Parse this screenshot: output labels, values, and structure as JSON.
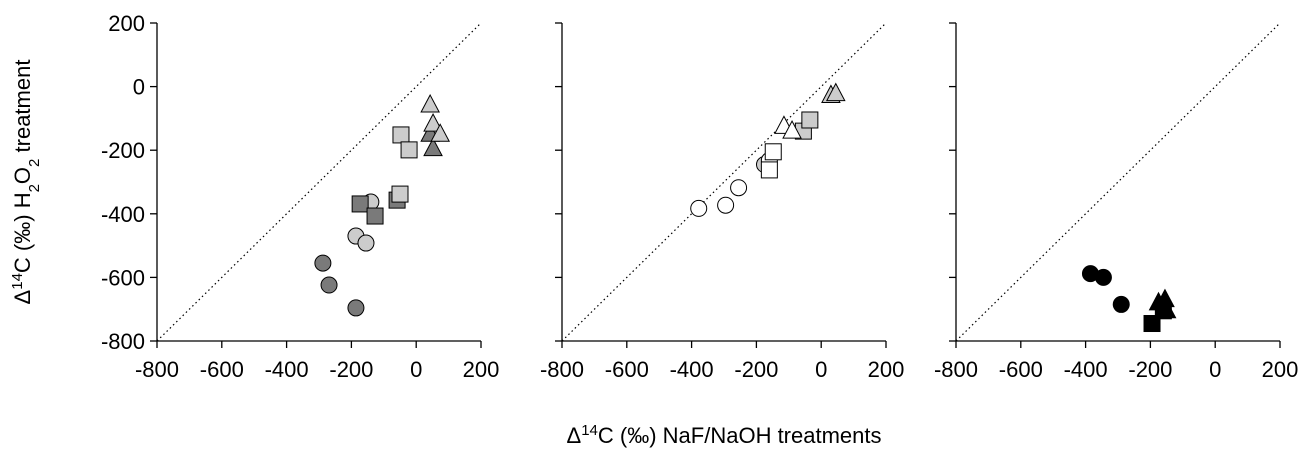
{
  "chart_data": [
    {
      "type": "scatter",
      "ylabel": "Δ14C (‰) H2O2 treatment",
      "xlim": [
        -800,
        200
      ],
      "ylim": [
        -800,
        200
      ],
      "xticks": [
        -800,
        -600,
        -400,
        -200,
        0,
        200
      ],
      "yticks": [
        -800,
        -600,
        -400,
        -200,
        0,
        200
      ],
      "ytick_labels": true,
      "identity_line": true,
      "series": [
        {
          "marker": "circle",
          "color": "#7a7a7a",
          "x": [
            -288,
            -269,
            -186
          ],
          "values": [
            -555,
            -624,
            -696
          ]
        },
        {
          "marker": "circle",
          "color": "#cccccc",
          "x": [
            -186,
            -155,
            -140
          ],
          "values": [
            -470,
            -492,
            -363
          ]
        },
        {
          "marker": "square",
          "color": "#7a7a7a",
          "x": [
            -173,
            -127,
            -59
          ],
          "values": [
            -369,
            -407,
            -357
          ]
        },
        {
          "marker": "square",
          "color": "#cccccc",
          "x": [
            -50,
            -47,
            -22
          ],
          "values": [
            -338,
            -152,
            -199
          ]
        },
        {
          "marker": "triangle",
          "color": "#7a7a7a",
          "x": [
            43,
            52
          ],
          "values": [
            -150,
            -195
          ]
        },
        {
          "marker": "triangle",
          "color": "#cccccc",
          "x": [
            43,
            52,
            74
          ],
          "values": [
            -58,
            -118,
            -150
          ]
        }
      ]
    },
    {
      "type": "scatter",
      "xlabel": "Δ14C (‰) NaF/NaOH treatments",
      "xlim": [
        -800,
        200
      ],
      "ylim": [
        -800,
        200
      ],
      "xticks": [
        -800,
        -600,
        -400,
        -200,
        0,
        200
      ],
      "yticks": [
        -800,
        -600,
        -400,
        -200,
        0,
        200
      ],
      "ytick_labels": false,
      "identity_line": true,
      "series": [
        {
          "marker": "circle",
          "color": "#cccccc",
          "x": [
            -175
          ],
          "values": [
            -245
          ]
        },
        {
          "marker": "circle",
          "color": "#ffffff",
          "x": [
            -378,
            -295,
            -255,
            -160
          ],
          "values": [
            -383,
            -373,
            -318,
            -232
          ]
        },
        {
          "marker": "square",
          "color": "#ffffff",
          "x": [
            -160,
            -148
          ],
          "values": [
            -262,
            -205
          ]
        },
        {
          "marker": "square",
          "color": "#cccccc",
          "x": [
            -55,
            -35
          ],
          "values": [
            -140,
            -105
          ]
        },
        {
          "marker": "triangle",
          "color": "#ffffff",
          "x": [
            -115,
            -90
          ],
          "values": [
            -125,
            -140
          ]
        },
        {
          "marker": "triangle",
          "color": "#cccccc",
          "x": [
            30,
            45
          ],
          "values": [
            -28,
            -22
          ]
        }
      ]
    },
    {
      "type": "scatter",
      "xlim": [
        -800,
        200
      ],
      "ylim": [
        -800,
        200
      ],
      "xticks": [
        -800,
        -600,
        -400,
        -200,
        0,
        200
      ],
      "yticks": [
        -800,
        -600,
        -400,
        -200,
        0,
        200
      ],
      "ytick_labels": false,
      "identity_line": true,
      "series": [
        {
          "marker": "circle",
          "color": "#000000",
          "x": [
            -385,
            -345,
            -290
          ],
          "values": [
            -588,
            -600,
            -685
          ]
        },
        {
          "marker": "square",
          "color": "#000000",
          "x": [
            -195,
            -160
          ],
          "values": [
            -745,
            -705
          ]
        },
        {
          "marker": "triangle",
          "color": "#000000",
          "x": [
            -175,
            -155,
            -150
          ],
          "values": [
            -680,
            -670,
            -705
          ]
        }
      ]
    }
  ]
}
